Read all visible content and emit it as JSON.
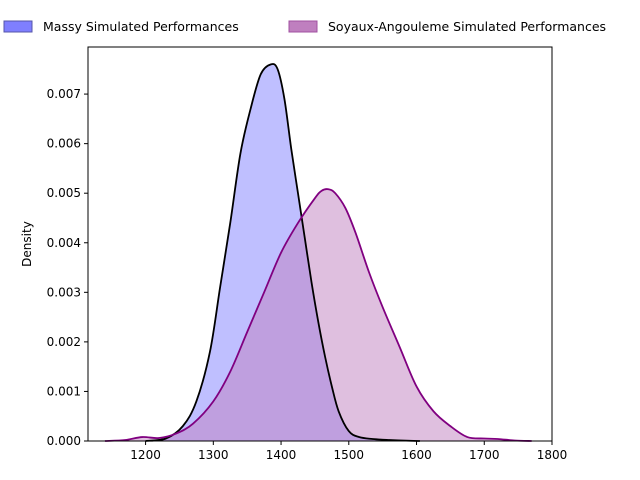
{
  "chart_data": {
    "type": "area",
    "title": "",
    "xlabel": "",
    "ylabel": "Density",
    "xlim": [
      1115,
      1800
    ],
    "ylim": [
      0,
      0.00795
    ],
    "x_ticks": [
      1200,
      1300,
      1400,
      1500,
      1600,
      1700,
      1800
    ],
    "y_ticks": [
      0.0,
      0.001,
      0.002,
      0.003,
      0.004,
      0.005,
      0.006,
      0.007
    ],
    "y_tick_labels": [
      "0.000",
      "0.001",
      "0.002",
      "0.003",
      "0.004",
      "0.005",
      "0.006",
      "0.007"
    ],
    "grid": false,
    "legend_position": "top (above plot, outside)",
    "series": [
      {
        "name": "Massy Simulated Performances",
        "fill_color": "#8080ff",
        "fill_opacity": 0.5,
        "line_color": "#000000",
        "legend_color": "#7f7fff",
        "x": [
          1200,
          1230,
          1255,
          1275,
          1295,
          1310,
          1325,
          1340,
          1355,
          1370,
          1385,
          1395,
          1405,
          1415,
          1425,
          1435,
          1445,
          1455,
          1465,
          1475,
          1485,
          1500,
          1515,
          1535,
          1560,
          1590,
          1605
        ],
        "y": [
          0.0,
          5e-05,
          0.0003,
          0.0008,
          0.0018,
          0.0031,
          0.0044,
          0.0058,
          0.0067,
          0.0074,
          0.0076,
          0.0075,
          0.0069,
          0.0059,
          0.005,
          0.0041,
          0.0032,
          0.0024,
          0.0017,
          0.0011,
          0.0006,
          0.0002,
          8e-05,
          4e-05,
          2e-05,
          5e-06,
          0.0
        ]
      },
      {
        "name": "Soyaux-Angouleme Simulated Performances",
        "fill_color": "#c080c0",
        "fill_opacity": 0.5,
        "line_color": "#800080",
        "legend_color": "#bf7fbf",
        "x": [
          1140,
          1170,
          1195,
          1220,
          1245,
          1270,
          1300,
          1325,
          1350,
          1375,
          1400,
          1425,
          1450,
          1460,
          1470,
          1480,
          1495,
          1510,
          1530,
          1550,
          1575,
          1600,
          1625,
          1650,
          1675,
          1700,
          1720,
          1745,
          1770
        ],
        "y": [
          0.0,
          2e-05,
          8e-05,
          6e-05,
          0.00015,
          0.00035,
          0.0008,
          0.0014,
          0.0022,
          0.003,
          0.0038,
          0.0044,
          0.0049,
          0.00505,
          0.00508,
          0.005,
          0.0047,
          0.0042,
          0.0034,
          0.0027,
          0.0019,
          0.0011,
          0.0006,
          0.0003,
          8e-05,
          5e-05,
          4e-05,
          1e-05,
          0.0
        ]
      }
    ]
  }
}
